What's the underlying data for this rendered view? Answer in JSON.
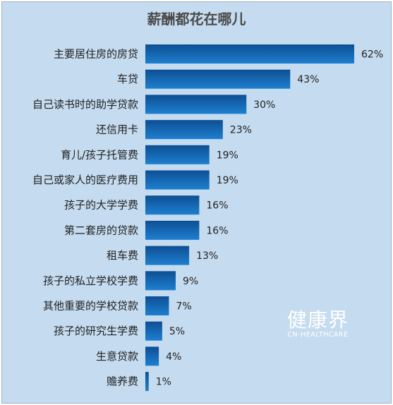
{
  "chart_data": {
    "type": "bar",
    "orientation": "horizontal",
    "title": "薪酬都花在哪儿",
    "categories": [
      "主要居住房的房贷",
      "车贷",
      "自己读书时的助学贷款",
      "还信用卡",
      "育儿/孩子托管费",
      "自己或家人的医疗费用",
      "孩子的大学学费",
      "第二套房的贷款",
      "租车费",
      "孩子的私立学校学费",
      "其他重要的学校贷款",
      "孩子的研究生学费",
      "生意贷款",
      "赡养费"
    ],
    "values": [
      62,
      43,
      30,
      23,
      19,
      19,
      16,
      16,
      13,
      9,
      7,
      5,
      4,
      1
    ],
    "value_labels": [
      "62%",
      "43%",
      "30%",
      "23%",
      "19%",
      "19%",
      "16%",
      "16%",
      "13%",
      "9%",
      "7%",
      "5%",
      "4%",
      "1%"
    ],
    "unit": "%",
    "xlim": [
      0,
      62
    ],
    "grid": false,
    "legend": "none",
    "colors": {
      "background": "#c5dbef",
      "bar_dark": "#0d4f93",
      "bar_light": "#1e7fd0",
      "text": "#222222",
      "title": "#4a4a4a"
    }
  },
  "watermark": {
    "cn": "健康界",
    "en": "CN-HEALTHCARE"
  }
}
